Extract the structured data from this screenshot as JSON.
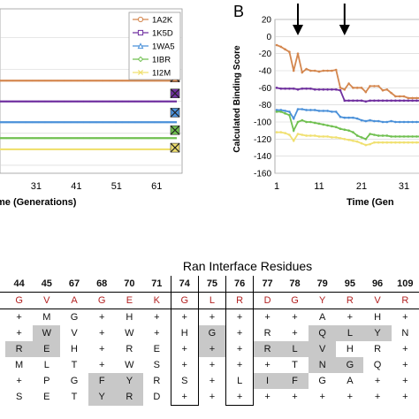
{
  "panel_b_label": "B",
  "table_title": "Ran Interface Residues",
  "chart_data": [
    {
      "type": "line",
      "panel": "A",
      "xlabel_visible": "me (Generations)",
      "x_ticks": [
        31,
        41,
        51,
        61
      ],
      "xlim": [
        22,
        66
      ],
      "ylim": [
        -125,
        -22
      ],
      "grid": true,
      "legend": "top-right",
      "series": [
        {
          "name": "1A2K",
          "color": "#d4874f",
          "marker": "circle",
          "x": [
            22,
            66
          ],
          "y": [
            -67,
            -67
          ]
        },
        {
          "name": "1K5D",
          "color": "#7030a0",
          "marker": "square",
          "x": [
            22,
            66
          ],
          "y": [
            -80,
            -80
          ]
        },
        {
          "name": "1WA5",
          "color": "#4a90d9",
          "marker": "triangle",
          "x": [
            22,
            66
          ],
          "y": [
            -93,
            -93
          ]
        },
        {
          "name": "1IBR",
          "color": "#70c050",
          "marker": "diamond",
          "x": [
            22,
            66
          ],
          "y": [
            -103,
            -103
          ]
        },
        {
          "name": "1I2M",
          "color": "#f0e070",
          "marker": "x",
          "x": [
            22,
            66
          ],
          "y": [
            -110,
            -110
          ]
        }
      ],
      "end_markers": [
        {
          "series": "1A2K",
          "y": -65,
          "fill": "#d4874f"
        },
        {
          "series": "1K5D",
          "y": -75,
          "fill": "#7030a0"
        },
        {
          "series": "1WA5",
          "y": -87,
          "fill": "#4a90d9"
        },
        {
          "series": "1IBR",
          "y": -98,
          "fill": "#70c050"
        },
        {
          "series": "1I2M",
          "y": -109,
          "fill": "#f0e070"
        }
      ]
    },
    {
      "type": "line",
      "panel": "B",
      "ylabel": "Calculated Binding Score",
      "xlabel_visible": "Time (Gen",
      "y_ticks": [
        20,
        0,
        -20,
        -40,
        -60,
        -80,
        -100,
        -120,
        -140,
        -160
      ],
      "x_ticks": [
        1,
        11,
        21,
        31
      ],
      "ylim": [
        -160,
        20
      ],
      "xlim": [
        1,
        36
      ],
      "grid": true,
      "arrows_at_x": [
        6,
        17
      ],
      "series": [
        {
          "name": "1A2K",
          "color": "#d4874f",
          "x": [
            1,
            2,
            3,
            4,
            5,
            6,
            7,
            8,
            9,
            10,
            11,
            12,
            13,
            14,
            15,
            16,
            17,
            18,
            19,
            20,
            21,
            22,
            23,
            24,
            25,
            26,
            27,
            28,
            29,
            30,
            31,
            32,
            33,
            34,
            35,
            36
          ],
          "y": [
            -10,
            -12,
            -15,
            -18,
            -40,
            -20,
            -42,
            -38,
            -40,
            -40,
            -41,
            -40,
            -40,
            -40,
            -39,
            -60,
            -62,
            -55,
            -60,
            -60,
            -60,
            -65,
            -58,
            -58,
            -58,
            -63,
            -62,
            -66,
            -70,
            -70,
            -70,
            -72,
            -72,
            -72,
            -72,
            -72
          ]
        },
        {
          "name": "1K5D",
          "color": "#7030a0",
          "x": [
            1,
            2,
            3,
            4,
            5,
            6,
            7,
            8,
            9,
            10,
            11,
            12,
            13,
            14,
            15,
            16,
            17,
            18,
            19,
            20,
            21,
            22,
            23,
            24,
            25,
            26,
            27,
            28,
            29,
            30,
            31,
            32,
            33,
            34,
            35,
            36
          ],
          "y": [
            -60,
            -61,
            -61,
            -61,
            -61,
            -62,
            -61,
            -61,
            -61,
            -62,
            -62,
            -62,
            -62,
            -62,
            -62,
            -63,
            -75,
            -75,
            -75,
            -75,
            -75,
            -76,
            -75,
            -75,
            -75,
            -75,
            -75,
            -75,
            -75,
            -75,
            -75,
            -75,
            -75,
            -75,
            -75,
            -75
          ]
        },
        {
          "name": "1WA5",
          "color": "#4a90d9",
          "x": [
            1,
            2,
            3,
            4,
            5,
            6,
            7,
            8,
            9,
            10,
            11,
            12,
            13,
            14,
            15,
            16,
            17,
            18,
            19,
            20,
            21,
            22,
            23,
            24,
            25,
            26,
            27,
            28,
            29,
            30,
            31,
            32,
            33,
            34,
            35,
            36
          ],
          "y": [
            -86,
            -86,
            -87,
            -88,
            -96,
            -85,
            -85,
            -86,
            -86,
            -86,
            -87,
            -87,
            -87,
            -88,
            -88,
            -94,
            -95,
            -95,
            -95,
            -96,
            -98,
            -99,
            -98,
            -99,
            -99,
            -100,
            -100,
            -99,
            -100,
            -100,
            -100,
            -100,
            -100,
            -100,
            -100,
            -100
          ]
        },
        {
          "name": "1IBR",
          "color": "#70c050",
          "x": [
            1,
            2,
            3,
            4,
            5,
            6,
            7,
            8,
            9,
            10,
            11,
            12,
            13,
            14,
            15,
            16,
            17,
            18,
            19,
            20,
            21,
            22,
            23,
            24,
            25,
            26,
            27,
            28,
            29,
            30,
            31,
            32,
            33,
            34,
            35,
            36
          ],
          "y": [
            -88,
            -88,
            -90,
            -92,
            -110,
            -100,
            -98,
            -100,
            -100,
            -101,
            -102,
            -103,
            -104,
            -105,
            -106,
            -108,
            -109,
            -110,
            -112,
            -116,
            -118,
            -120,
            -114,
            -115,
            -116,
            -116,
            -116,
            -117,
            -117,
            -117,
            -117,
            -117,
            -117,
            -117,
            -117,
            -117
          ]
        },
        {
          "name": "1I2M",
          "color": "#f0e070",
          "x": [
            1,
            2,
            3,
            4,
            5,
            6,
            7,
            8,
            9,
            10,
            11,
            12,
            13,
            14,
            15,
            16,
            17,
            18,
            19,
            20,
            21,
            22,
            23,
            24,
            25,
            26,
            27,
            28,
            29,
            30,
            31,
            32,
            33,
            34,
            35,
            36
          ],
          "y": [
            -112,
            -112,
            -113,
            -115,
            -122,
            -114,
            -115,
            -116,
            -116,
            -116,
            -117,
            -117,
            -117,
            -118,
            -118,
            -119,
            -120,
            -121,
            -122,
            -123,
            -125,
            -127,
            -126,
            -124,
            -124,
            -124,
            -124,
            -124,
            -124,
            -124,
            -124,
            -124,
            -124,
            -124,
            -124,
            -124
          ]
        }
      ]
    }
  ],
  "residue_table": {
    "positions": [
      "44",
      "45",
      "67",
      "68",
      "70",
      "71",
      "74",
      "75",
      "76",
      "77",
      "78",
      "79",
      "95",
      "96",
      "109"
    ],
    "wild_type": [
      "G",
      "V",
      "A",
      "G",
      "E",
      "K",
      "G",
      "L",
      "R",
      "D",
      "G",
      "Y",
      "R",
      "V",
      "R"
    ],
    "boxed_columns": [
      6,
      8
    ],
    "rows": [
      [
        "+",
        "M",
        "G",
        "+",
        "H",
        "+",
        "+",
        "+",
        "+",
        "+",
        "+",
        "A",
        "+",
        "H",
        "+"
      ],
      [
        "+",
        "W",
        "V",
        "+",
        "W",
        "+",
        "H",
        "G",
        "+",
        "R",
        "+",
        "Q",
        "L",
        "Y",
        "N"
      ],
      [
        "R",
        "E",
        "H",
        "+",
        "R",
        "E",
        "+",
        "+",
        "+",
        "R",
        "L",
        "V",
        "H",
        "R",
        "+"
      ],
      [
        "M",
        "L",
        "T",
        "+",
        "W",
        "S",
        "+",
        "+",
        "+",
        "+",
        "T",
        "N",
        "G",
        "Q",
        "+"
      ],
      [
        "+",
        "P",
        "G",
        "F",
        "Y",
        "R",
        "S",
        "+",
        "L",
        "I",
        "F",
        "G",
        "A",
        "+",
        "+"
      ],
      [
        "S",
        "E",
        "T",
        "Y",
        "R",
        "D",
        "+",
        "+",
        "+",
        "+",
        "+",
        "+",
        "+",
        "+",
        "+"
      ]
    ],
    "shaded": [
      [
        0,
        0,
        0,
        0,
        0,
        0,
        0,
        0,
        0,
        0,
        0,
        0,
        0,
        0,
        0
      ],
      [
        0,
        1,
        0,
        0,
        0,
        0,
        0,
        1,
        0,
        0,
        0,
        1,
        1,
        1,
        0
      ],
      [
        1,
        1,
        0,
        0,
        0,
        0,
        0,
        1,
        0,
        1,
        1,
        1,
        0,
        0,
        0
      ],
      [
        0,
        0,
        0,
        0,
        0,
        0,
        0,
        0,
        0,
        0,
        0,
        1,
        1,
        0,
        0
      ],
      [
        0,
        0,
        0,
        1,
        1,
        0,
        0,
        0,
        0,
        1,
        1,
        0,
        0,
        0,
        0
      ],
      [
        0,
        0,
        0,
        1,
        1,
        0,
        0,
        0,
        0,
        0,
        0,
        0,
        0,
        0,
        0
      ]
    ]
  }
}
